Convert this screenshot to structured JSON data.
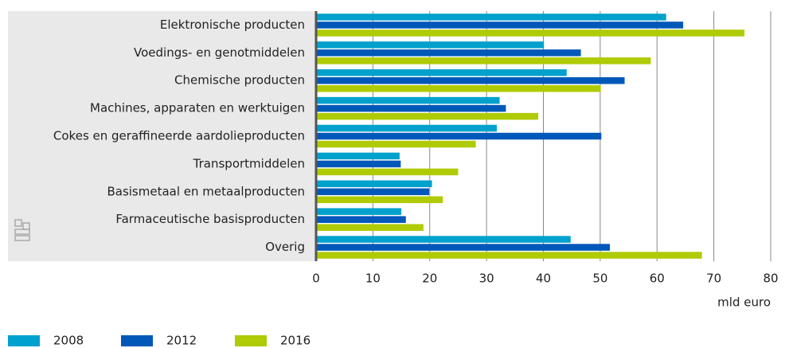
{
  "chart_data": {
    "type": "bar",
    "orientation": "horizontal",
    "x_label": "mld euro",
    "categories": [
      "Elektronische producten",
      "Voedings- en genotmiddelen",
      "Chemische producten",
      "Machines, apparaten en werktuigen",
      "Cokes en geraffineerde aardolieproducten",
      "Transportmiddelen",
      "Basismetaal en metaalproducten",
      "Farmaceutische basisproducten",
      "Overig"
    ],
    "series": [
      {
        "name": "2008",
        "color": "#00a1cd",
        "values": [
          61.6,
          40.1,
          44.1,
          32.3,
          31.8,
          14.7,
          20.4,
          15.0,
          44.8
        ]
      },
      {
        "name": "2012",
        "color": "#0058b8",
        "values": [
          64.6,
          46.6,
          54.3,
          33.4,
          50.2,
          14.9,
          19.9,
          15.8,
          51.7
        ]
      },
      {
        "name": "2016",
        "color": "#afcb05",
        "values": [
          75.4,
          58.9,
          50.1,
          39.1,
          28.1,
          25.0,
          22.3,
          18.9,
          67.9
        ]
      }
    ],
    "xlim": [
      0,
      80
    ],
    "xticks": [
      0,
      10,
      20,
      30,
      40,
      50,
      60,
      70,
      80
    ],
    "grid": true
  }
}
